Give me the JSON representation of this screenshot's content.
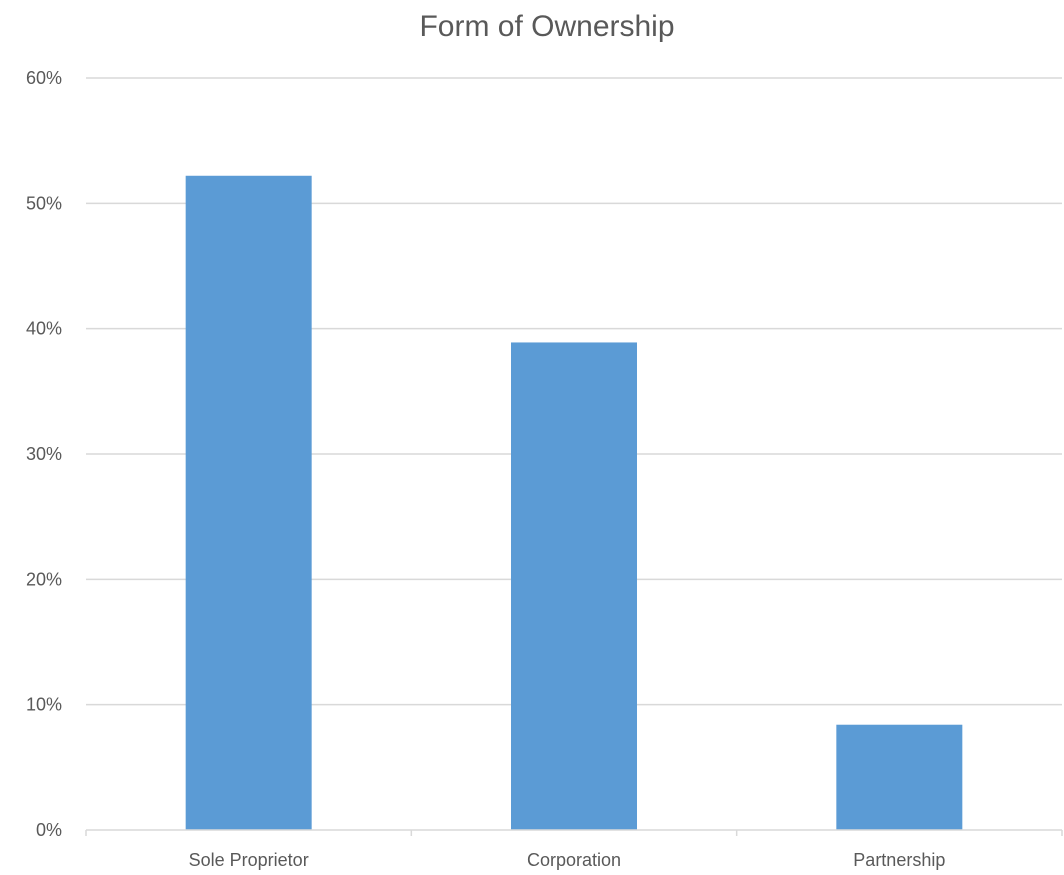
{
  "chart_data": {
    "type": "bar",
    "title": "Form of Ownership",
    "categories": [
      "Sole Proprietor",
      "Corporation",
      "Partnership"
    ],
    "values": [
      0.522,
      0.389,
      0.084
    ],
    "ylim": [
      0,
      0.6
    ],
    "yticks": [
      0,
      0.1,
      0.2,
      0.3,
      0.4,
      0.5,
      0.6
    ],
    "ytick_labels": [
      "0%",
      "10%",
      "20%",
      "30%",
      "40%",
      "50%",
      "60%"
    ],
    "xlabel": "",
    "ylabel": "",
    "grid": true,
    "legend": "none",
    "bar_color": "#5b9bd5"
  }
}
